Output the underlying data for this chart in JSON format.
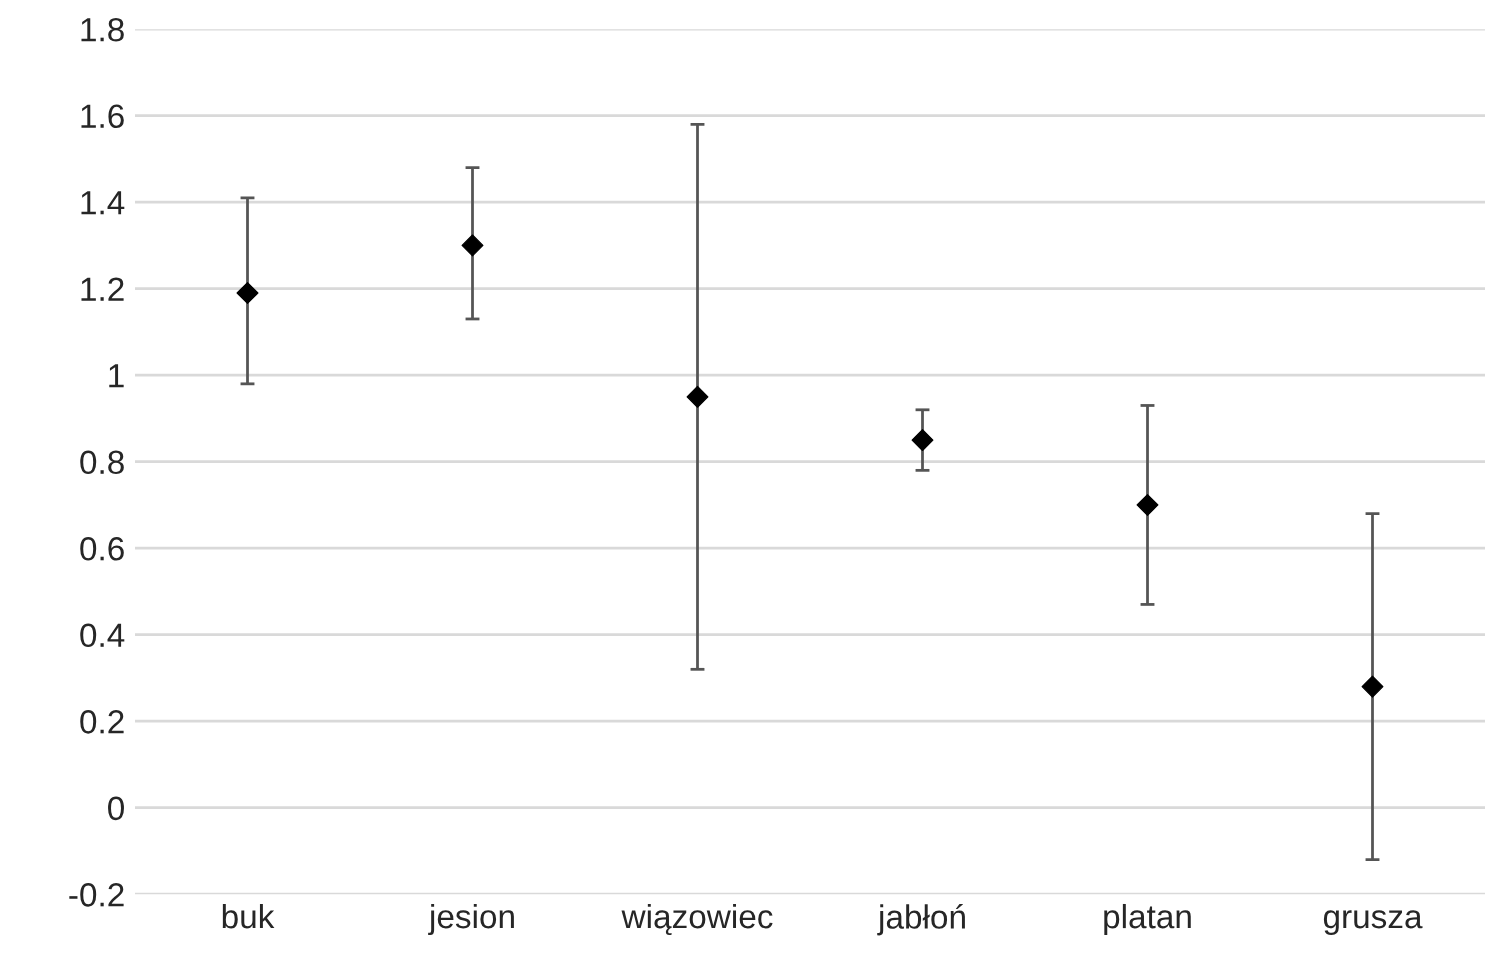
{
  "chart_data": {
    "type": "scatter",
    "categories": [
      "buk",
      "jesion",
      "wiązowiec",
      "jabłoń",
      "platan",
      "grusza"
    ],
    "values": [
      1.19,
      1.3,
      0.95,
      0.85,
      0.7,
      0.28
    ],
    "errors": [
      [
        0.98,
        1.41
      ],
      [
        1.13,
        1.48
      ],
      [
        0.32,
        1.58
      ],
      [
        0.78,
        0.92
      ],
      [
        0.47,
        0.93
      ],
      [
        -0.12,
        0.68
      ]
    ],
    "color": "#000000",
    "marker": "diamond",
    "ylim": [
      -0.2,
      1.8
    ],
    "yticks": [
      -0.2,
      0,
      0.2,
      0.4,
      0.6,
      0.8,
      {
        "value": 1,
        "label": "1"
      },
      1.2,
      1.4,
      1.6,
      1.8
    ],
    "grid": "y"
  }
}
